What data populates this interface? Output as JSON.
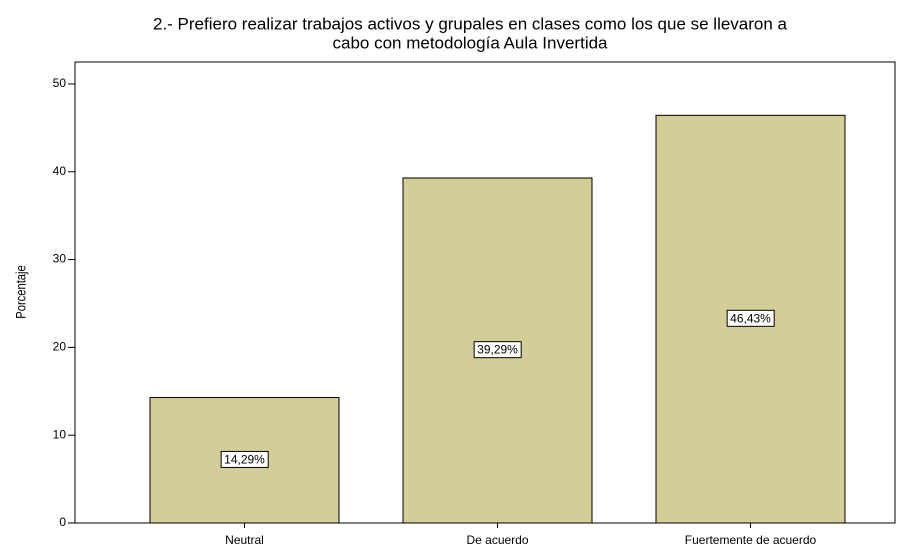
{
  "chart_data": {
    "type": "bar",
    "title": [
      "2.- Prefiero realizar trabajos activos y grupales en clases como los que se llevaron a",
      "cabo con metodología Aula Invertida"
    ],
    "ylabel": "Porcentaje",
    "categories": [
      "Neutral",
      "De acuerdo",
      "Fuertemente de acuerdo"
    ],
    "values": [
      14.29,
      39.29,
      46.43
    ],
    "value_labels": [
      "14,29%",
      "39,29%",
      "46,43%"
    ],
    "color": "#d3ce97",
    "ylim": [
      0,
      52.5
    ],
    "yticks": [
      0,
      10,
      20,
      30,
      40,
      50
    ],
    "grid": false
  }
}
